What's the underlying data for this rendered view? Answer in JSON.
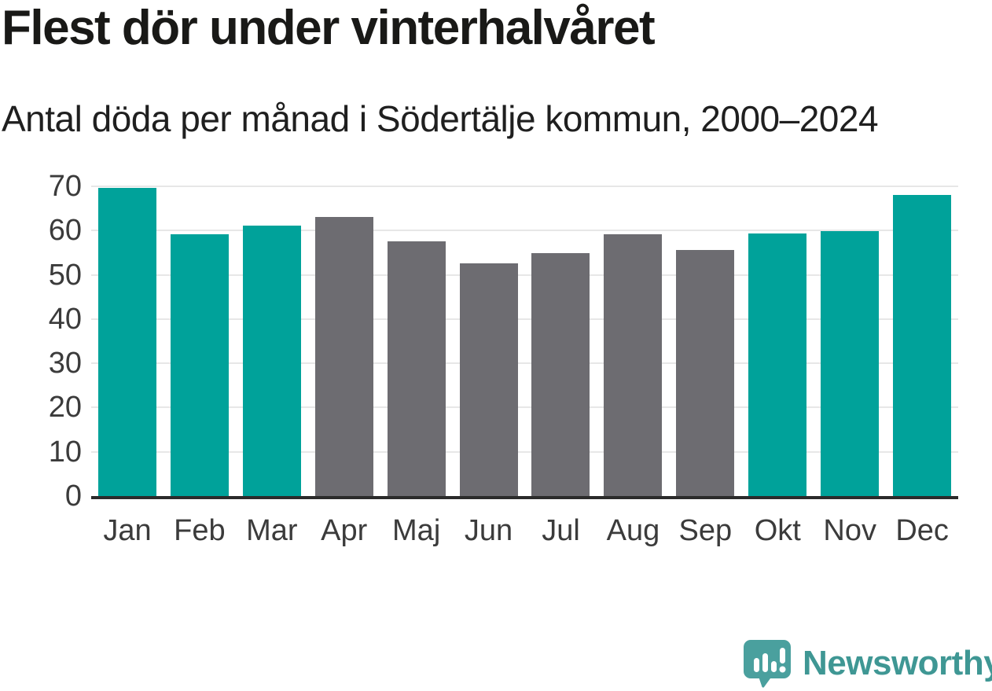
{
  "chart_data": {
    "type": "bar",
    "title": "Flest dör under vinterhalvåret",
    "subtitle": "Antal döda per månad i Södertälje kommun, 2000–2024",
    "categories": [
      "Jan",
      "Feb",
      "Mar",
      "Apr",
      "Maj",
      "Jun",
      "Jul",
      "Aug",
      "Sep",
      "Okt",
      "Nov",
      "Dec"
    ],
    "values": [
      69.6,
      59.2,
      61.1,
      63.0,
      57.5,
      52.6,
      54.9,
      59.1,
      55.7,
      59.4,
      59.9,
      68.0
    ],
    "bar_color_keys": [
      "winter",
      "winter",
      "winter",
      "summer",
      "summer",
      "summer",
      "summer",
      "summer",
      "summer",
      "winter",
      "winter",
      "winter"
    ],
    "palette": {
      "winter": "#00a29a",
      "summer": "#6d6c71"
    },
    "xlabel": "",
    "ylabel": "",
    "ylim": [
      0,
      70
    ],
    "yticks": [
      0,
      10,
      20,
      30,
      40,
      50,
      60,
      70
    ],
    "grid": true,
    "gridline_color": "#e7e7e7",
    "axis_line_color": "#2b2b2b",
    "legend_position": "none"
  },
  "branding": {
    "wordmark": "Newsworthy",
    "logo_icon": "newsworthy-speech-bubble-bar-chart-icon",
    "icon_color": "#4aa09e",
    "wordmark_color": "#3f9794"
  }
}
